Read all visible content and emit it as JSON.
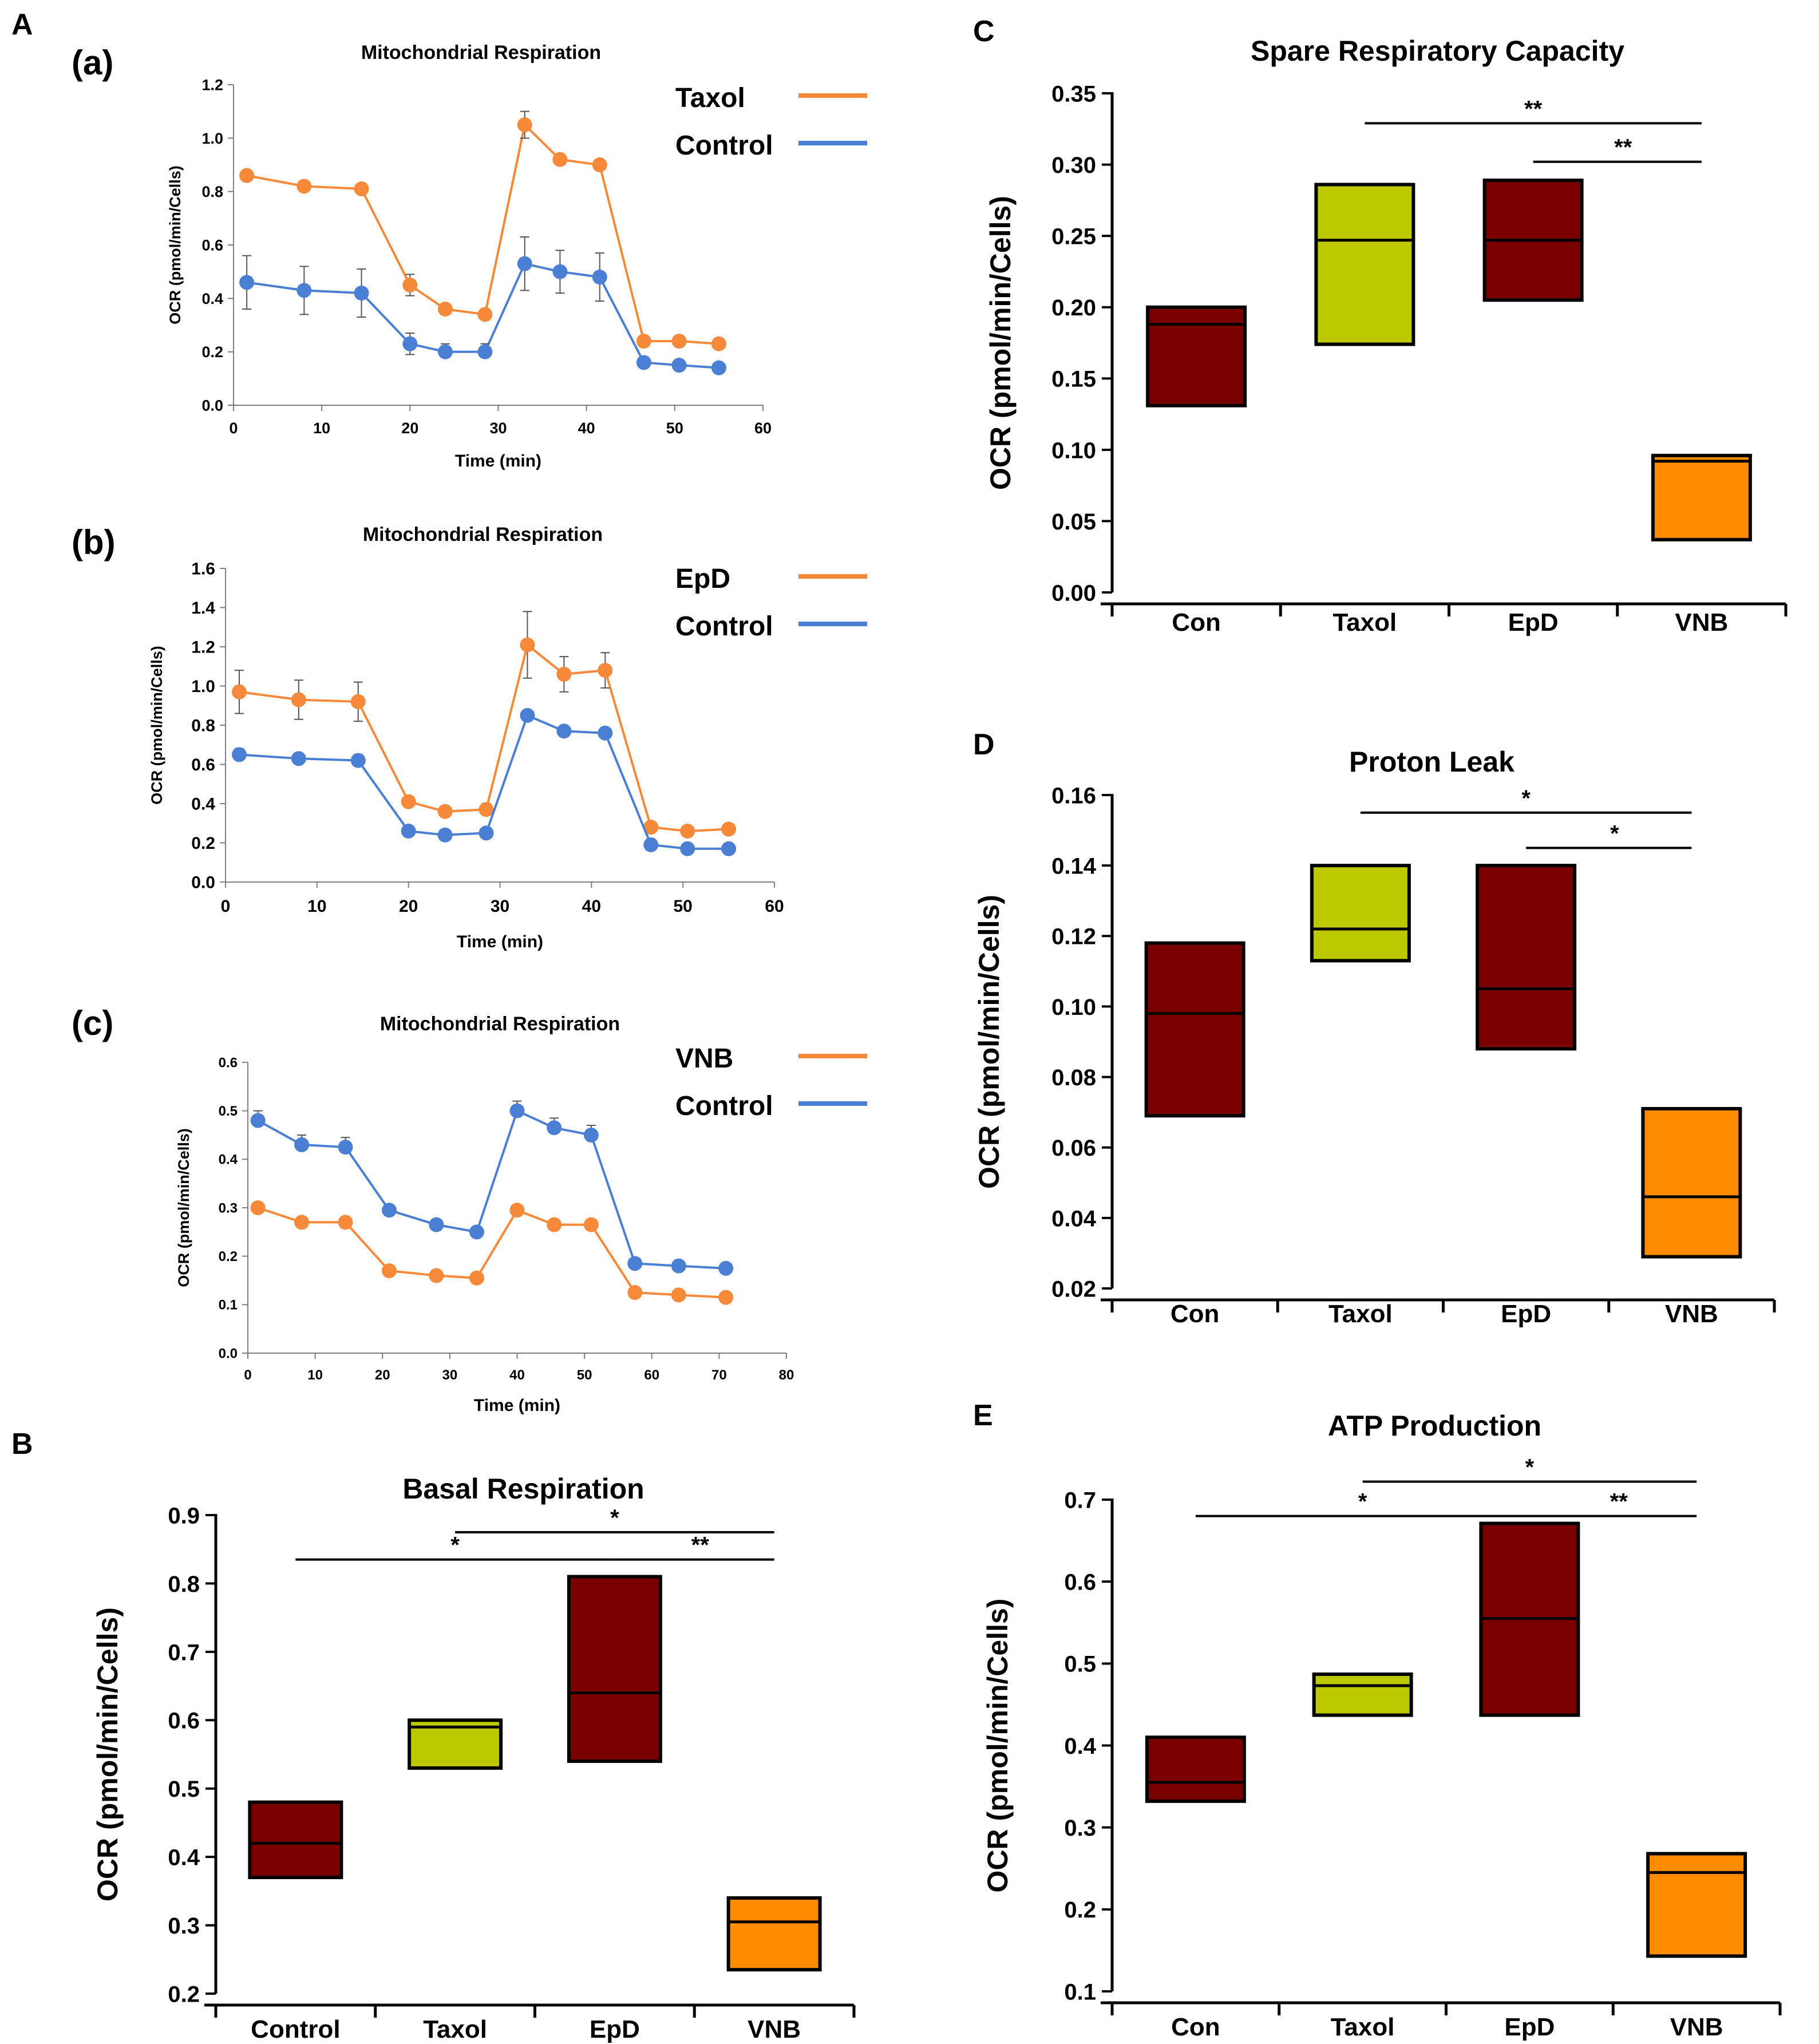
{
  "panel_labels": {
    "A": "A",
    "B": "B",
    "C": "C",
    "D": "D",
    "E": "E"
  },
  "sub_labels": {
    "a": "(a)",
    "b": "(b)",
    "c": "(c)"
  },
  "colors": {
    "orange_line": "#F7893A",
    "blue_line": "#4A7FD4",
    "dark_red": "#7A0000",
    "olive": "#BCC800",
    "orange_box": "#FF8C00"
  },
  "chart_data": [
    {
      "id": "Aa",
      "type": "line",
      "title": "Mitochondrial Respiration",
      "xlabel": "Time (min)",
      "ylabel": "OCR (pmol/min/Cells)",
      "xlim": [
        0,
        60
      ],
      "ylim": [
        0,
        1.2
      ],
      "xticks": [
        0,
        10,
        20,
        30,
        40,
        50,
        60
      ],
      "yticks": [
        0.0,
        0.2,
        0.4,
        0.6,
        0.8,
        1.0,
        1.2
      ],
      "ytick_labels": [
        "0.0",
        "0.2",
        "0.4",
        "0.6",
        "0.8",
        "1.0",
        "1.2"
      ],
      "x": [
        1.5,
        8,
        14.5,
        20,
        24,
        28.5,
        33,
        37,
        41.5,
        46.5,
        50.5,
        55
      ],
      "series": [
        {
          "name": "Taxol",
          "color": "#F7893A",
          "values": [
            0.86,
            0.82,
            0.81,
            0.45,
            0.36,
            0.34,
            1.05,
            0.92,
            0.9,
            0.24,
            0.24,
            0.23
          ],
          "errors": [
            0.01,
            0.01,
            0.01,
            0.04,
            0.01,
            0.01,
            0.05,
            0.01,
            0.01,
            0.01,
            0.01,
            0.01
          ]
        },
        {
          "name": "Control",
          "color": "#4A7FD4",
          "values": [
            0.46,
            0.43,
            0.42,
            0.23,
            0.2,
            0.2,
            0.53,
            0.5,
            0.48,
            0.16,
            0.15,
            0.14
          ],
          "errors": [
            0.1,
            0.09,
            0.09,
            0.04,
            0.03,
            0.03,
            0.1,
            0.08,
            0.09,
            0.02,
            0.02,
            0.02
          ]
        }
      ]
    },
    {
      "id": "Ab",
      "type": "line",
      "title": "Mitochondrial Respiration",
      "xlabel": "Time (min)",
      "ylabel": "OCR (pmol/min/Cells)",
      "xlim": [
        0,
        60
      ],
      "ylim": [
        0,
        1.6
      ],
      "xticks": [
        0,
        10,
        20,
        30,
        40,
        50,
        60
      ],
      "yticks": [
        0.0,
        0.2,
        0.4,
        0.6,
        0.8,
        1.0,
        1.2,
        1.4,
        1.6
      ],
      "ytick_labels": [
        "0.0",
        "0.2",
        "0.4",
        "0.6",
        "0.8",
        "1.0",
        "1.2",
        "1.4",
        "1.6"
      ],
      "x": [
        1.5,
        8,
        14.5,
        20,
        24,
        28.5,
        33,
        37,
        41.5,
        46.5,
        50.5,
        55
      ],
      "series": [
        {
          "name": "EpD",
          "color": "#F7893A",
          "values": [
            0.97,
            0.93,
            0.92,
            0.41,
            0.36,
            0.37,
            1.21,
            1.06,
            1.08,
            0.28,
            0.26,
            0.27
          ],
          "errors": [
            0.11,
            0.1,
            0.1,
            0.02,
            0.02,
            0.03,
            0.17,
            0.09,
            0.09,
            0.02,
            0.02,
            0.02
          ]
        },
        {
          "name": "Control",
          "color": "#4A7FD4",
          "values": [
            0.65,
            0.63,
            0.62,
            0.26,
            0.24,
            0.25,
            0.85,
            0.77,
            0.76,
            0.19,
            0.17,
            0.17
          ],
          "errors": [
            0.03,
            0.02,
            0.03,
            0.01,
            0.01,
            0.01,
            0.01,
            0.01,
            0.01,
            0.01,
            0.01,
            0.01
          ]
        }
      ]
    },
    {
      "id": "Ac",
      "type": "line",
      "title": "Mitochondrial Respiration",
      "xlabel": "Time (min)",
      "ylabel": "OCR (pmol/min/Cells)",
      "xlim": [
        0,
        80
      ],
      "ylim": [
        0,
        0.6
      ],
      "xticks": [
        0,
        10,
        20,
        30,
        40,
        50,
        60,
        70,
        80
      ],
      "yticks": [
        0.0,
        0.1,
        0.2,
        0.3,
        0.4,
        0.5,
        0.6
      ],
      "ytick_labels": [
        "0.0",
        "0.1",
        "0.2",
        "0.3",
        "0.4",
        "0.5",
        "0.6"
      ],
      "x": [
        1.5,
        8,
        14.5,
        21,
        28,
        34,
        40,
        45.5,
        51,
        57.5,
        64,
        71
      ],
      "series": [
        {
          "name": "VNB",
          "color": "#F7893A",
          "values": [
            0.3,
            0.27,
            0.27,
            0.17,
            0.16,
            0.155,
            0.295,
            0.265,
            0.265,
            0.125,
            0.12,
            0.115
          ],
          "errors": [
            0.01,
            0.01,
            0.01,
            0.01,
            0.01,
            0.01,
            0.01,
            0.01,
            0.01,
            0.01,
            0.01,
            0.01
          ]
        },
        {
          "name": "Control",
          "color": "#4A7FD4",
          "values": [
            0.48,
            0.43,
            0.425,
            0.295,
            0.265,
            0.25,
            0.5,
            0.465,
            0.45,
            0.185,
            0.18,
            0.175
          ],
          "errors": [
            0.02,
            0.02,
            0.02,
            0.01,
            0.01,
            0.01,
            0.02,
            0.02,
            0.02,
            0.01,
            0.01,
            0.01
          ]
        }
      ]
    },
    {
      "id": "B",
      "type": "box",
      "title": "Basal Respiration",
      "ylabel": "OCR (pmol/min/Cells)",
      "ylim": [
        0.2,
        0.9
      ],
      "yticks": [
        0.2,
        0.3,
        0.4,
        0.5,
        0.6,
        0.7,
        0.8,
        0.9
      ],
      "ytick_labels": [
        "0.2",
        "0.3",
        "0.4",
        "0.5",
        "0.6",
        "0.7",
        "0.8",
        "0.9"
      ],
      "categories": [
        "Control",
        "Taxol",
        "EpD",
        "VNB"
      ],
      "boxes": [
        {
          "low": 0.37,
          "high": 0.48,
          "median": 0.42,
          "color": "#7A0000"
        },
        {
          "low": 0.53,
          "high": 0.6,
          "median": 0.59,
          "color": "#BCC800"
        },
        {
          "low": 0.54,
          "high": 0.81,
          "median": 0.64,
          "color": "#7A0000"
        },
        {
          "low": 0.235,
          "high": 0.34,
          "median": 0.305,
          "color": "#FF8C00"
        }
      ],
      "significance": [
        {
          "from": 1,
          "to": 3,
          "label": "*",
          "level": 0.875
        },
        {
          "from": 0,
          "to": 2,
          "label": "*",
          "level": 0.835
        },
        {
          "from": 2,
          "to": 3,
          "label": "**",
          "level": 0.835
        }
      ]
    },
    {
      "id": "C",
      "type": "box",
      "title": "Spare Respiratory Capacity",
      "ylabel": "OCR (pmol/min/Cells)",
      "ylim": [
        0.0,
        0.35
      ],
      "yticks": [
        0.0,
        0.05,
        0.1,
        0.15,
        0.2,
        0.25,
        0.3,
        0.35
      ],
      "ytick_labels": [
        "0.00",
        "0.05",
        "0.10",
        "0.15",
        "0.20",
        "0.25",
        "0.30",
        "0.35"
      ],
      "categories": [
        "Con",
        "Taxol",
        "EpD",
        "VNB"
      ],
      "boxes": [
        {
          "low": 0.131,
          "high": 0.2,
          "median": 0.188,
          "color": "#7A0000"
        },
        {
          "low": 0.174,
          "high": 0.286,
          "median": 0.247,
          "color": "#BCC800"
        },
        {
          "low": 0.205,
          "high": 0.289,
          "median": 0.247,
          "color": "#7A0000"
        },
        {
          "low": 0.037,
          "high": 0.096,
          "median": 0.092,
          "color": "#FF8C00"
        }
      ],
      "significance": [
        {
          "from": 1,
          "to": 3,
          "label": "**",
          "level": 0.329
        },
        {
          "from": 2,
          "to": 3,
          "label": "**",
          "level": 0.302
        }
      ]
    },
    {
      "id": "D",
      "type": "box",
      "title": "Proton Leak",
      "ylabel": "OCR (pmol/min/Cells)",
      "ylim": [
        0.02,
        0.16
      ],
      "yticks": [
        0.02,
        0.04,
        0.06,
        0.08,
        0.1,
        0.12,
        0.14,
        0.16
      ],
      "ytick_labels": [
        "0.02",
        "0.04",
        "0.06",
        "0.08",
        "0.10",
        "0.12",
        "0.14",
        "0.16"
      ],
      "categories": [
        "Con",
        "Taxol",
        "EpD",
        "VNB"
      ],
      "boxes": [
        {
          "low": 0.069,
          "high": 0.118,
          "median": 0.098,
          "color": "#7A0000"
        },
        {
          "low": 0.113,
          "high": 0.14,
          "median": 0.122,
          "color": "#BCC800"
        },
        {
          "low": 0.088,
          "high": 0.14,
          "median": 0.105,
          "color": "#7A0000"
        },
        {
          "low": 0.029,
          "high": 0.071,
          "median": 0.046,
          "color": "#FF8C00"
        }
      ],
      "significance": [
        {
          "from": 1,
          "to": 3,
          "label": "*",
          "level": 0.155
        },
        {
          "from": 2,
          "to": 3,
          "label": "*",
          "level": 0.145
        }
      ]
    },
    {
      "id": "E",
      "type": "box",
      "title": "ATP Production",
      "ylabel": "OCR (pmol/min/Cells)",
      "ylim": [
        0.1,
        0.7
      ],
      "yticks": [
        0.1,
        0.2,
        0.3,
        0.4,
        0.5,
        0.6,
        0.7
      ],
      "ytick_labels": [
        "0.1",
        "0.2",
        "0.3",
        "0.4",
        "0.5",
        "0.6",
        "0.7"
      ],
      "categories": [
        "Con",
        "Taxol",
        "EpD",
        "VNB"
      ],
      "boxes": [
        {
          "low": 0.332,
          "high": 0.41,
          "median": 0.355,
          "color": "#7A0000"
        },
        {
          "low": 0.437,
          "high": 0.487,
          "median": 0.473,
          "color": "#BCC800"
        },
        {
          "low": 0.437,
          "high": 0.671,
          "median": 0.555,
          "color": "#7A0000"
        },
        {
          "low": 0.143,
          "high": 0.268,
          "median": 0.245,
          "color": "#FF8C00"
        }
      ],
      "significance": [
        {
          "from": 1,
          "to": 3,
          "label": "*",
          "level": 0.722
        },
        {
          "from": 0,
          "to": 2,
          "label": "*",
          "level": 0.68
        },
        {
          "from": 2,
          "to": 3,
          "label": "**",
          "level": 0.68
        }
      ]
    }
  ]
}
